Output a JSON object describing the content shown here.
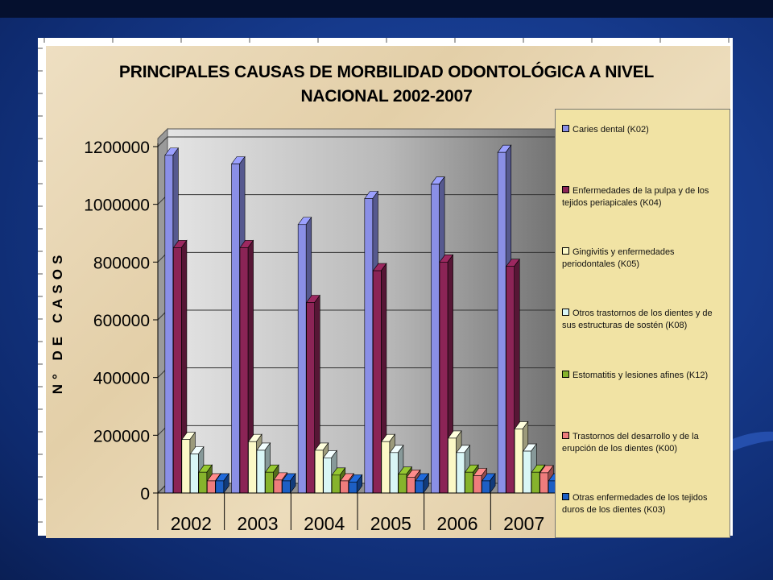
{
  "chart_data": {
    "type": "bar",
    "title_line1": "PRINCIPALES CAUSAS DE MORBILIDAD ODONTOLÓGICA A NIVEL",
    "title_line2": "NACIONAL 2002-2007",
    "ylabel": "N° DE CASOS",
    "xlabel": "",
    "ylim": [
      0,
      1200000
    ],
    "yticks": [
      "0",
      "200000",
      "400000",
      "600000",
      "800000",
      "1000000",
      "1200000"
    ],
    "categories": [
      "2002",
      "2003",
      "2004",
      "2005",
      "2006",
      "2007"
    ],
    "legend_position": "right",
    "series": [
      {
        "name": "Caries dental (K02)",
        "color": "#8a8fe6",
        "values": [
          1170000,
          1140000,
          930000,
          1020000,
          1070000,
          1180000
        ]
      },
      {
        "name": "Enfermedades de la pulpa y de los tejidos periapicales (K04)",
        "color": "#8b2456",
        "values": [
          850000,
          850000,
          660000,
          770000,
          800000,
          785000
        ]
      },
      {
        "name": "Gingivitis y enfermedades periodontales (K05)",
        "color": "#fbf8c6",
        "values": [
          185000,
          178000,
          148000,
          178000,
          190000,
          222000
        ]
      },
      {
        "name": "Otros trastornos de los dientes y de sus estructuras de sostén (K08)",
        "color": "#d9f6f6",
        "values": [
          135000,
          148000,
          122000,
          140000,
          140000,
          145000
        ]
      },
      {
        "name": "Estomatitis y lesiones afines (K12)",
        "color": "#86b32c",
        "values": [
          72000,
          72000,
          62000,
          65000,
          72000,
          72000
        ]
      },
      {
        "name": "Trastornos del desarrollo y de la erupción de los dientes (K00)",
        "color": "#ee7c7c",
        "values": [
          42000,
          45000,
          42000,
          55000,
          60000,
          70000
        ]
      },
      {
        "name": "Otras enfermedades de los tejidos duros de los dientes (K03)",
        "color": "#1d5fc4",
        "values": [
          42000,
          42000,
          38000,
          42000,
          42000,
          42000
        ]
      }
    ]
  }
}
